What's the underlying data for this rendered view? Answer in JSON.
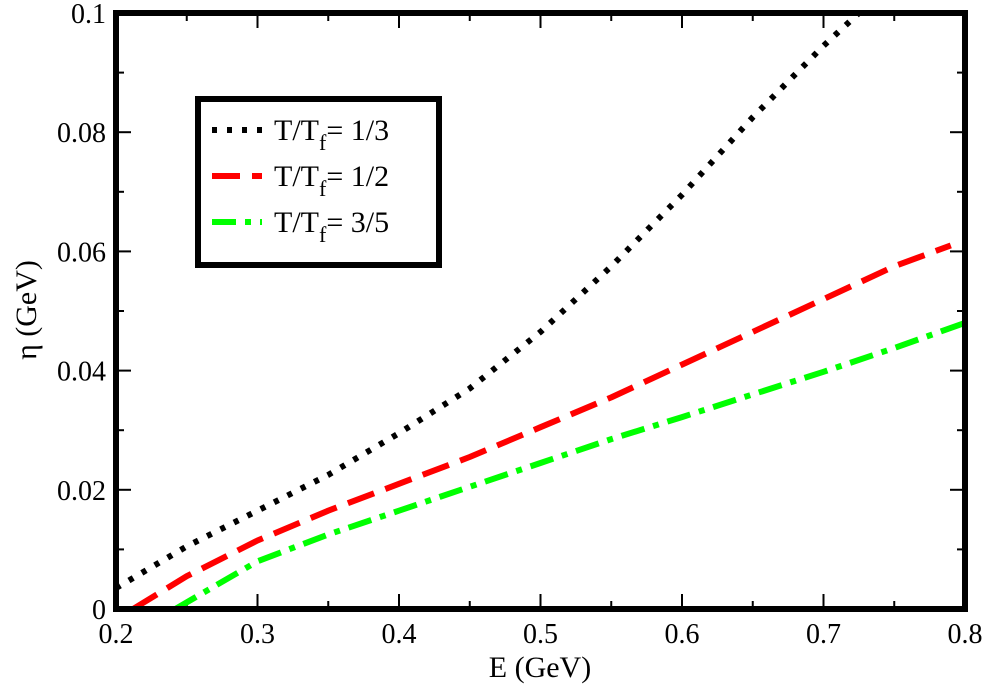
{
  "chart_data": {
    "type": "line",
    "xlabel": "E (GeV)",
    "ylabel": "η (GeV)",
    "xlim": [
      0.2,
      0.8
    ],
    "ylim": [
      0,
      0.1
    ],
    "x_ticks": [
      0.2,
      0.3,
      0.4,
      0.5,
      0.6,
      0.7,
      0.8
    ],
    "x_tick_labels": [
      "0.2",
      "0.3",
      "0.4",
      "0.5",
      "0.6",
      "0.7",
      "0.8"
    ],
    "y_ticks": [
      0,
      0.02,
      0.04,
      0.06,
      0.08,
      0.1
    ],
    "y_tick_labels": [
      "0",
      "0.02",
      "0.04",
      "0.06",
      "0.08",
      "0.1"
    ],
    "grid": false,
    "legend_position": "top-left",
    "series": [
      {
        "name": "T/Tf= 1/3",
        "label_main": "T/T",
        "label_sub": "f",
        "label_value": "= 1/3",
        "color": "#000000",
        "style": "dotted",
        "x": [
          0.2,
          0.25,
          0.3,
          0.35,
          0.4,
          0.45,
          0.5,
          0.55,
          0.6,
          0.65,
          0.7,
          0.725
        ],
        "y": [
          0.0035,
          0.0105,
          0.0165,
          0.0225,
          0.0295,
          0.037,
          0.0465,
          0.0575,
          0.0695,
          0.0825,
          0.0945,
          0.1
        ]
      },
      {
        "name": "T/Tf= 1/2",
        "label_main": "T/T",
        "label_sub": "f",
        "label_value": "= 1/2",
        "color": "#ff0000",
        "style": "dashed",
        "x": [
          0.212,
          0.25,
          0.3,
          0.35,
          0.4,
          0.45,
          0.5,
          0.55,
          0.6,
          0.65,
          0.7,
          0.75,
          0.79
        ],
        "y": [
          0,
          0.0055,
          0.0115,
          0.0165,
          0.021,
          0.0255,
          0.0305,
          0.0355,
          0.041,
          0.0465,
          0.052,
          0.0575,
          0.061
        ]
      },
      {
        "name": "T/Tf= 3/5",
        "label_main": "T/T",
        "label_sub": "f",
        "label_value": "= 3/5",
        "color": "#00ff00",
        "style": "dash-dot",
        "x": [
          0.242,
          0.26,
          0.3,
          0.35,
          0.4,
          0.45,
          0.5,
          0.55,
          0.6,
          0.65,
          0.7,
          0.75,
          0.8
        ],
        "y": [
          0,
          0.0025,
          0.008,
          0.0125,
          0.0165,
          0.0205,
          0.0245,
          0.0285,
          0.0322,
          0.036,
          0.0398,
          0.0438,
          0.048
        ]
      }
    ]
  }
}
